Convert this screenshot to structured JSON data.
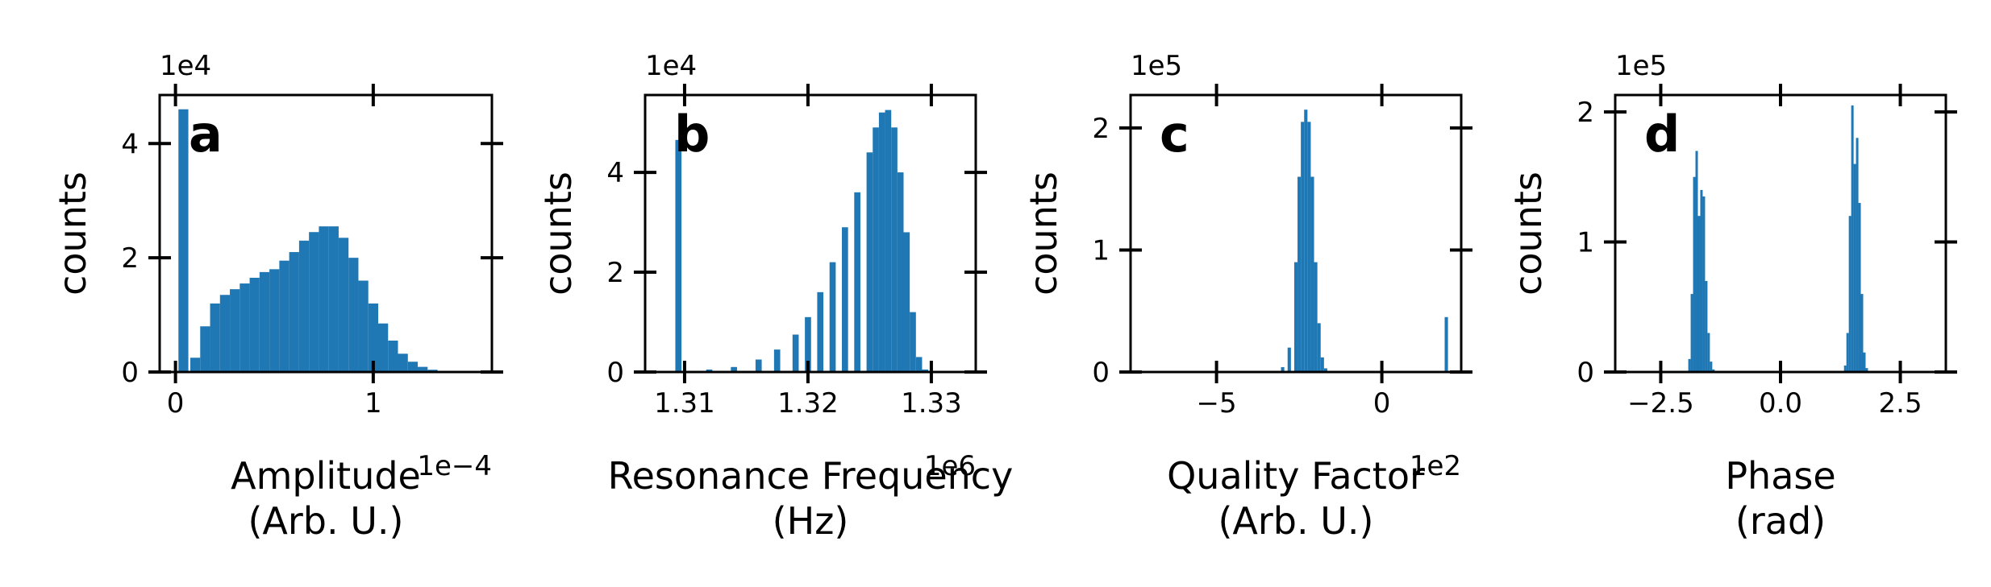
{
  "figure": {
    "bar_color": "#1f77b4"
  },
  "chart_data": [
    {
      "type": "bar",
      "panel_letter": "a",
      "xlabel": "Amplitude\n(Arb. U.)",
      "ylabel": "counts",
      "x_offset_label": "1e−4",
      "y_offset_label": "1e4",
      "xlim": [
        -0.08,
        1.6
      ],
      "ylim": [
        0,
        4.85
      ],
      "xticks": [
        0,
        1
      ],
      "xtick_labels": [
        "0",
        "1"
      ],
      "yticks": [
        0,
        2,
        4
      ],
      "ytick_labels": [
        "0",
        "2",
        "4"
      ],
      "histogram": {
        "x": [
          0.04,
          0.1,
          0.15,
          0.2,
          0.25,
          0.3,
          0.35,
          0.4,
          0.45,
          0.5,
          0.55,
          0.6,
          0.65,
          0.7,
          0.75,
          0.8,
          0.85,
          0.9,
          0.95,
          1.0,
          1.05,
          1.1,
          1.15,
          1.2,
          1.25,
          1.3,
          1.35,
          1.4
        ],
        "counts": [
          4.6,
          0.25,
          0.8,
          1.2,
          1.35,
          1.45,
          1.55,
          1.65,
          1.75,
          1.8,
          1.95,
          2.1,
          2.3,
          2.45,
          2.55,
          2.55,
          2.35,
          2.0,
          1.6,
          1.2,
          0.85,
          0.55,
          0.32,
          0.18,
          0.09,
          0.04,
          0.02,
          0.01
        ],
        "bin_width": 0.05
      }
    },
    {
      "type": "bar",
      "panel_letter": "b",
      "xlabel": "Resonance Frequency\n(Hz)",
      "ylabel": "counts",
      "x_offset_label": "1e6",
      "y_offset_label": "1e4",
      "xlim": [
        1.3068,
        1.3336
      ],
      "ylim": [
        0,
        5.55
      ],
      "xticks": [
        1.31,
        1.32,
        1.33
      ],
      "xtick_labels": [
        "1.31",
        "1.32",
        "1.33"
      ],
      "yticks": [
        0,
        2,
        4
      ],
      "ytick_labels": [
        "0",
        "2",
        "4"
      ],
      "histogram": {
        "x": [
          1.3095,
          1.311,
          1.312,
          1.314,
          1.316,
          1.3175,
          1.319,
          1.32,
          1.321,
          1.322,
          1.323,
          1.324,
          1.325,
          1.3255,
          1.326,
          1.3265,
          1.327,
          1.3275,
          1.328,
          1.3285,
          1.329,
          1.3295
        ],
        "counts": [
          4.65,
          0.02,
          0.05,
          0.1,
          0.25,
          0.45,
          0.75,
          1.1,
          1.6,
          2.2,
          2.9,
          3.6,
          4.4,
          4.9,
          5.2,
          5.25,
          4.9,
          4.0,
          2.8,
          1.2,
          0.3,
          0.05
        ],
        "bin_width": 0.0005
      }
    },
    {
      "type": "bar",
      "panel_letter": "c",
      "xlabel": "Quality Factor\n(Arb. U.)",
      "ylabel": "counts",
      "x_offset_label": "1e2",
      "y_offset_label": "1e5",
      "xlim": [
        -7.6,
        2.4
      ],
      "ylim": [
        0,
        2.27
      ],
      "xticks": [
        -5,
        0
      ],
      "xtick_labels": [
        "−5",
        "0"
      ],
      "yticks": [
        0,
        1,
        2
      ],
      "ytick_labels": [
        "0",
        "1",
        "2"
      ],
      "histogram": {
        "x": [
          -3.0,
          -2.8,
          -2.6,
          -2.5,
          -2.4,
          -2.3,
          -2.2,
          -2.1,
          -2.0,
          -1.9,
          -1.8,
          -1.7,
          1.95
        ],
        "counts": [
          0.04,
          0.2,
          0.9,
          1.6,
          2.05,
          2.15,
          2.05,
          1.6,
          0.9,
          0.4,
          0.12,
          0.03,
          0.45
        ],
        "bin_width": 0.1
      }
    },
    {
      "type": "bar",
      "panel_letter": "d",
      "xlabel": "Phase\n(rad)",
      "ylabel": "counts",
      "x_offset_label": "",
      "y_offset_label": "1e5",
      "xlim": [
        -3.45,
        3.45
      ],
      "ylim": [
        0,
        2.13
      ],
      "xticks": [
        -2.5,
        0.0,
        2.5
      ],
      "xtick_labels": [
        "−2.5",
        "0.0",
        "2.5"
      ],
      "yticks": [
        0,
        1,
        2
      ],
      "ytick_labels": [
        "0",
        "1",
        "2"
      ],
      "histogram": {
        "x": [
          -1.9,
          -1.85,
          -1.8,
          -1.75,
          -1.7,
          -1.65,
          -1.6,
          -1.55,
          -1.5,
          -1.45,
          -1.4,
          1.35,
          1.4,
          1.45,
          1.5,
          1.55,
          1.6,
          1.65,
          1.7,
          1.75,
          1.8
        ],
        "counts": [
          0.1,
          0.6,
          1.5,
          1.7,
          1.2,
          1.4,
          1.35,
          0.7,
          0.3,
          0.08,
          0.02,
          0.05,
          0.3,
          1.2,
          2.05,
          1.6,
          1.8,
          1.3,
          0.6,
          0.15,
          0.03
        ],
        "bin_width": 0.05
      }
    }
  ]
}
